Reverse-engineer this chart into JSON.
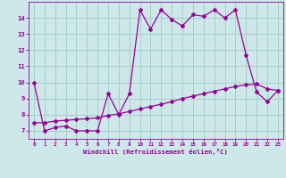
{
  "xlabel": "Windchill (Refroidissement éolien,°C)",
  "bg_color": "#cce8e8",
  "grid_color": "#aacccc",
  "line_color": "#990099",
  "xlim": [
    -0.5,
    23.5
  ],
  "ylim": [
    6.5,
    15.0
  ],
  "yticks": [
    7,
    8,
    9,
    10,
    11,
    12,
    13,
    14
  ],
  "xticks": [
    0,
    1,
    2,
    3,
    4,
    5,
    6,
    7,
    8,
    9,
    10,
    11,
    12,
    13,
    14,
    15,
    16,
    17,
    18,
    19,
    20,
    21,
    22,
    23
  ],
  "line1_x": [
    0,
    1,
    2,
    3,
    4,
    5,
    6,
    7,
    8,
    9,
    10,
    11,
    12,
    13,
    14,
    15,
    16,
    17,
    18,
    19,
    20,
    21,
    22,
    23
  ],
  "line1_y": [
    10.0,
    7.0,
    7.2,
    7.3,
    7.0,
    7.0,
    7.0,
    9.3,
    8.0,
    9.3,
    14.5,
    13.3,
    14.5,
    13.9,
    13.5,
    14.2,
    14.1,
    14.5,
    14.0,
    14.5,
    11.7,
    9.4,
    8.8,
    9.5
  ],
  "line2_x": [
    0,
    1,
    2,
    3,
    4,
    5,
    6,
    7,
    8,
    9,
    10,
    11,
    12,
    13,
    14,
    15,
    16,
    17,
    18,
    19,
    20,
    21,
    22,
    23
  ],
  "line2_y": [
    7.5,
    7.5,
    7.6,
    7.65,
    7.7,
    7.75,
    7.8,
    7.95,
    8.05,
    8.2,
    8.35,
    8.5,
    8.65,
    8.8,
    9.0,
    9.15,
    9.3,
    9.45,
    9.6,
    9.75,
    9.85,
    9.9,
    9.6,
    9.5
  ]
}
